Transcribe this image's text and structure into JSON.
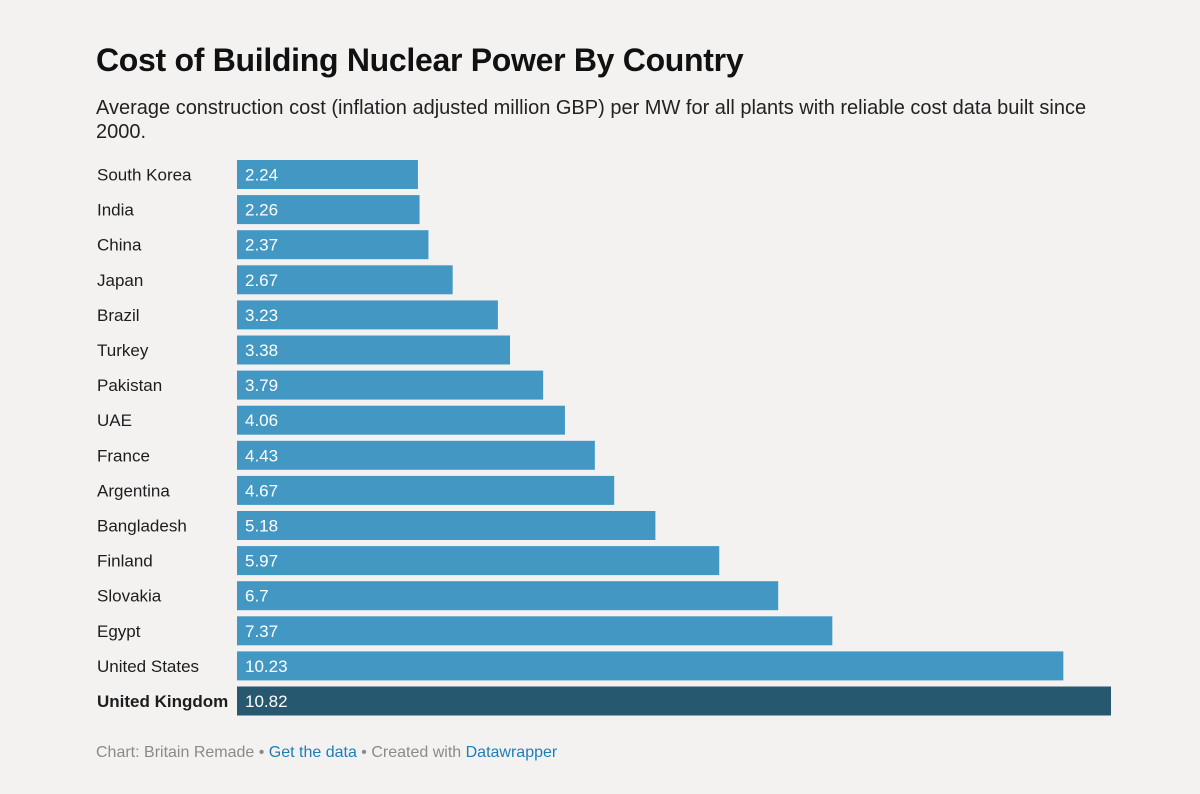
{
  "chart_data": {
    "type": "bar",
    "orientation": "horizontal",
    "title": "Cost of Building Nuclear Power By Country",
    "subtitle": "Average construction cost (inflation adjusted million GBP) per MW for all plants with reliable cost data built since 2000.",
    "categories": [
      "South Korea",
      "India",
      "China",
      "Japan",
      "Brazil",
      "Turkey",
      "Pakistan",
      "UAE",
      "France",
      "Argentina",
      "Bangladesh",
      "Finland",
      "Slovakia",
      "Egypt",
      "United States",
      "United Kingdom"
    ],
    "values": [
      2.24,
      2.26,
      2.37,
      2.67,
      3.23,
      3.38,
      3.79,
      4.06,
      4.43,
      4.67,
      5.18,
      5.97,
      6.7,
      7.37,
      10.23,
      10.82
    ],
    "value_labels": [
      "2.24",
      "2.26",
      "2.37",
      "2.67",
      "3.23",
      "3.38",
      "3.79",
      "4.06",
      "4.43",
      "4.67",
      "5.18",
      "5.97",
      "6.7",
      "7.37",
      "10.23",
      "10.82"
    ],
    "highlight": "United Kingdom",
    "bar_color": "#4398c3",
    "highlight_color": "#265870",
    "xlim": [
      0,
      10.82
    ],
    "grid": false,
    "legend": "none"
  },
  "footer": {
    "source_prefix": "Chart: Britain Remade • ",
    "get_data_link": "Get the data",
    "created_with": " • Created with ",
    "datawrapper_link": "Datawrapper"
  }
}
